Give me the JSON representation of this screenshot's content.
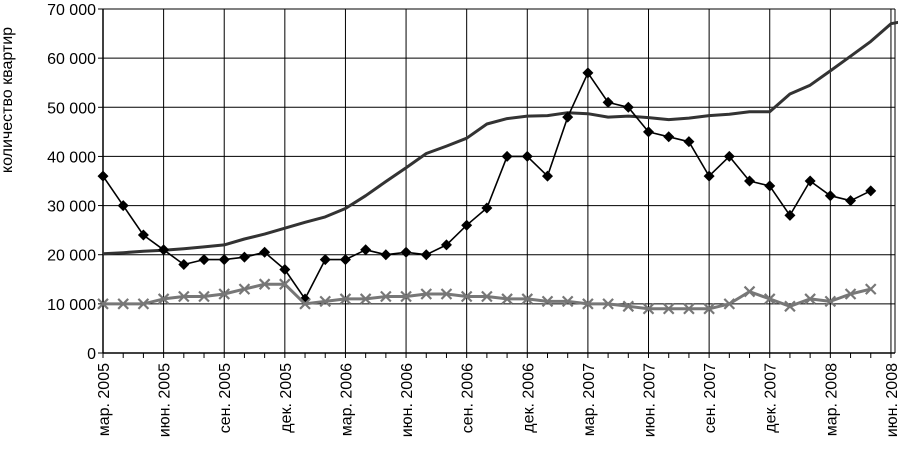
{
  "chart_data": {
    "type": "line",
    "title": "",
    "xlabel": "",
    "ylabel": "количество квартир",
    "ylim": [
      0,
      70000
    ],
    "y_ticks": [
      {
        "value": 0,
        "label": "0"
      },
      {
        "value": 10000,
        "label": "10 000"
      },
      {
        "value": 20000,
        "label": "20 000"
      },
      {
        "value": 30000,
        "label": "30 000"
      },
      {
        "value": 40000,
        "label": "40 000"
      },
      {
        "value": 50000,
        "label": "50 000"
      },
      {
        "value": 60000,
        "label": "60 000"
      },
      {
        "value": 70000,
        "label": "70 000"
      }
    ],
    "x_tick_labels": [
      "мар. 2005",
      "июн. 2005",
      "сен. 2005",
      "дек. 2005",
      "мар. 2006",
      "июн. 2006",
      "сен. 2006",
      "дек. 2006",
      "мар. 2007",
      "июн. 2007",
      "сен. 2007",
      "дек. 2007",
      "мар. 2008",
      "июн. 2008"
    ],
    "grid": true,
    "legend": "none",
    "series": [
      {
        "style": "plain-thick",
        "color": "#333333",
        "values": [
          20200,
          20400,
          20700,
          20900,
          21200,
          21600,
          22000,
          23200,
          24200,
          25400,
          26600,
          27700,
          29400,
          32000,
          34900,
          37700,
          40600,
          42100,
          43700,
          46600,
          47700,
          48200,
          48300,
          48900,
          48700,
          48000,
          48200,
          47900,
          47500,
          47800,
          48300,
          48600,
          49100,
          49100,
          52700,
          54500,
          57400,
          60400,
          63400,
          67000,
          67800
        ]
      },
      {
        "style": "diamond-marker",
        "color": "#000000",
        "values": [
          36000,
          30000,
          24000,
          21000,
          18000,
          19000,
          19000,
          19500,
          20500,
          17000,
          11000,
          19000,
          19000,
          21000,
          20000,
          20500,
          20000,
          22000,
          26000,
          29500,
          40000,
          40000,
          36000,
          48000,
          57000,
          51000,
          50000,
          45000,
          44000,
          43000,
          36000,
          40000,
          35000,
          34000,
          28000,
          35000,
          32000,
          31000,
          33000
        ]
      },
      {
        "style": "cross-marker",
        "color": "#777777",
        "values": [
          10000,
          10000,
          10000,
          11000,
          11500,
          11500,
          12000,
          13000,
          14000,
          14000,
          10000,
          10500,
          11000,
          11000,
          11500,
          11500,
          12000,
          12000,
          11500,
          11500,
          11000,
          11000,
          10500,
          10500,
          10000,
          10000,
          9500,
          9000,
          9000,
          9000,
          9000,
          10000,
          12500,
          11000,
          9500,
          11000,
          10500,
          12000,
          13000
        ]
      }
    ]
  }
}
